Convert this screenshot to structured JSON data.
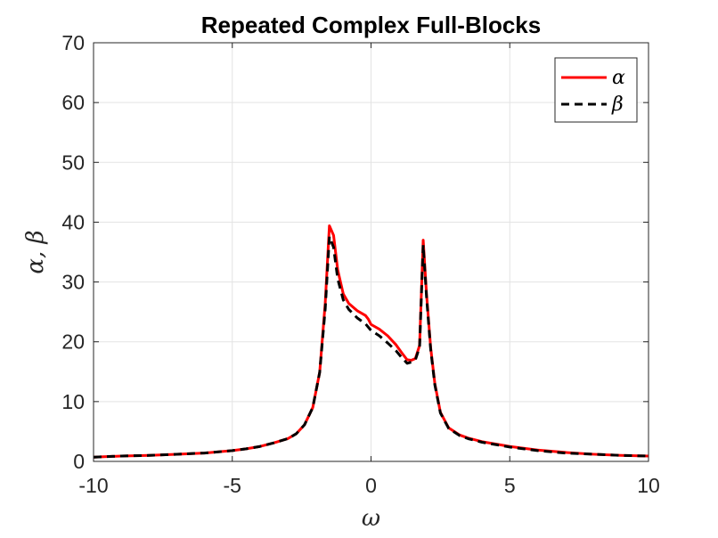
{
  "chart_data": {
    "type": "line",
    "title": "Repeated Complex Full-Blocks",
    "xlabel": "ω",
    "ylabel": "α, β",
    "xlim": [
      -10,
      10
    ],
    "ylim": [
      0,
      70
    ],
    "xticks": [
      -10,
      -5,
      0,
      5,
      10
    ],
    "yticks": [
      0,
      10,
      20,
      30,
      40,
      50,
      60,
      70
    ],
    "xtick_labels": [
      "-10",
      "-5",
      "0",
      "5",
      "10"
    ],
    "ytick_labels": [
      "0",
      "10",
      "20",
      "30",
      "40",
      "50",
      "60",
      "70"
    ],
    "grid": true,
    "legend_position": "top-right",
    "series": [
      {
        "name": "α",
        "color": "#ff0000",
        "style": "solid",
        "x": [
          -10,
          -9,
          -8,
          -7,
          -6,
          -5,
          -4.5,
          -4,
          -3.5,
          -3,
          -2.7,
          -2.4,
          -2.1,
          -1.85,
          -1.65,
          -1.5,
          -1.35,
          -1.2,
          -1,
          -0.8,
          -0.5,
          -0.2,
          -0.1,
          0,
          0.3,
          0.6,
          0.9,
          1.1,
          1.3,
          1.45,
          1.6,
          1.75,
          1.88,
          2.0,
          2.15,
          2.3,
          2.5,
          2.8,
          3.2,
          3.5,
          4,
          5,
          6,
          7,
          8,
          9,
          10
        ],
        "values": [
          0.7,
          0.9,
          1.0,
          1.2,
          1.4,
          1.8,
          2.1,
          2.5,
          3.1,
          3.8,
          4.6,
          6.1,
          9.0,
          14.9,
          26.5,
          39.4,
          37.8,
          32.0,
          28.0,
          26.4,
          25.2,
          24.4,
          23.8,
          22.9,
          22.1,
          21.0,
          19.5,
          18.2,
          17.0,
          16.9,
          17.2,
          19.4,
          37.0,
          28.0,
          19.0,
          13.0,
          8.2,
          5.6,
          4.4,
          3.9,
          3.3,
          2.5,
          1.9,
          1.5,
          1.2,
          1.0,
          0.9
        ]
      },
      {
        "name": "β",
        "color": "#000000",
        "style": "dashed",
        "x": [
          -10,
          -9,
          -8,
          -7,
          -6,
          -5,
          -4.5,
          -4,
          -3.5,
          -3,
          -2.7,
          -2.4,
          -2.1,
          -1.85,
          -1.65,
          -1.5,
          -1.35,
          -1.2,
          -1,
          -0.8,
          -0.5,
          -0.2,
          0,
          0.3,
          0.6,
          0.9,
          1.1,
          1.3,
          1.45,
          1.6,
          1.75,
          1.88,
          2.0,
          2.15,
          2.3,
          2.5,
          2.8,
          3.2,
          3.5,
          4,
          5,
          6,
          7,
          8,
          9,
          10
        ],
        "values": [
          0.7,
          0.9,
          1.0,
          1.2,
          1.4,
          1.8,
          2.1,
          2.5,
          3.1,
          3.8,
          4.6,
          6.1,
          9.0,
          14.9,
          25.5,
          37.6,
          35.8,
          30.5,
          27.0,
          25.4,
          24.0,
          23.0,
          21.9,
          21.0,
          19.8,
          18.5,
          17.4,
          16.4,
          16.6,
          17.0,
          19.1,
          36.2,
          27.5,
          18.7,
          12.8,
          8.1,
          5.5,
          4.3,
          3.8,
          3.2,
          2.4,
          1.8,
          1.4,
          1.2,
          1.0,
          0.9
        ]
      }
    ]
  }
}
